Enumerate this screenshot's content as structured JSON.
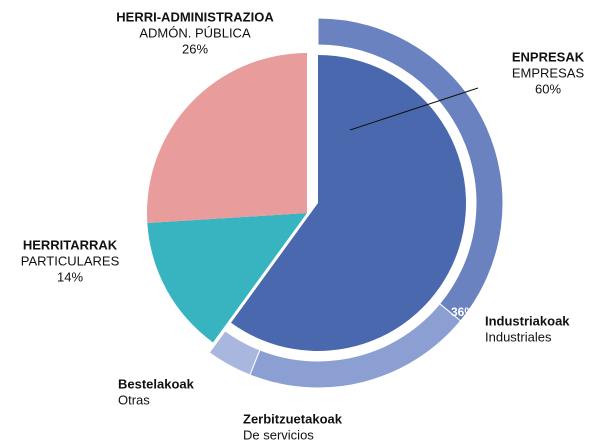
{
  "chart_data": {
    "type": "pie",
    "categories": [
      "EMPRESAS",
      "PARTICULARES",
      "ADMÓN. PÚBLICA"
    ],
    "categories_eu": [
      "ENPRESAK",
      "HERRITARRAK",
      "HERRI-ADMINISTRAZIOA"
    ],
    "values": [
      60,
      14,
      26
    ],
    "value_labels": [
      "60%",
      "14%",
      "26%"
    ],
    "colors": [
      "#4a68ae",
      "#38b4c0",
      "#e89c9c"
    ],
    "ring": {
      "categories": [
        "Industriales",
        "De servicios",
        "Otras"
      ],
      "categories_eu": [
        "Industriakoak",
        "Zerbitzuetakoak",
        "Bestelakoak"
      ],
      "values": [
        36,
        20,
        4
      ],
      "value_labels": [
        "36%",
        "20%",
        "4%"
      ],
      "colors": [
        "#6a82c0",
        "#8c9fd2",
        "#a9b6de"
      ]
    }
  }
}
